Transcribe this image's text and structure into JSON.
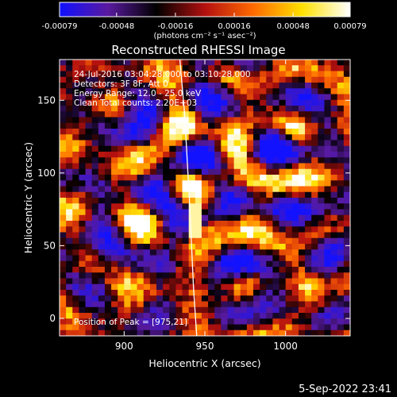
{
  "chart_data": {
    "type": "heatmap",
    "title": "Reconstructed RHESSI Image",
    "xlabel": "Heliocentric X (arcsec)",
    "ylabel": "Heliocentric Y (arcsec)",
    "xlim": [
      860,
      1040
    ],
    "ylim": [
      -12,
      178
    ],
    "x_ticks": [
      900,
      950,
      1000
    ],
    "x_tick_labels": [
      "900",
      "950",
      "1000"
    ],
    "y_ticks": [
      0,
      50,
      100,
      150
    ],
    "y_tick_labels": [
      "0",
      "50",
      "100",
      "150"
    ],
    "colorbar": {
      "range": [
        -0.00079,
        0.00079
      ],
      "ticks": [
        -0.00079,
        -0.00048,
        -0.00016,
        0.00016,
        0.00048,
        0.00079
      ],
      "tick_labels": [
        "-0.00079",
        "-0.00048",
        "-0.00016",
        "0.00016",
        "0.00048",
        "0.00079"
      ],
      "units_label": "(photons cm⁻² s⁻¹ asec⁻²)",
      "colors": [
        "#1010ff",
        "#5a1aa0",
        "#000000",
        "#b31010",
        "#ff6a00",
        "#ffe000",
        "#ffffff"
      ]
    },
    "annotations": {
      "time_range": "24-Jul-2016 03:04:28.000 to 03:10:28.000",
      "detectors": "Detectors: 3F 8F, Att 0",
      "energy": "Energy Range: 12.0 - 25.0 keV",
      "method": "Clean     Total counts: 2.20E+03",
      "peak": "Position of Peak = [975,21]"
    },
    "limb_line": {
      "x": [
        934.5,
        937.5,
        940.5,
        943.0,
        945.0
      ],
      "y": [
        178,
        140,
        80,
        20,
        -12
      ]
    },
    "grid": false
  },
  "footer": {
    "timestamp": "5-Sep-2022 23:41"
  }
}
